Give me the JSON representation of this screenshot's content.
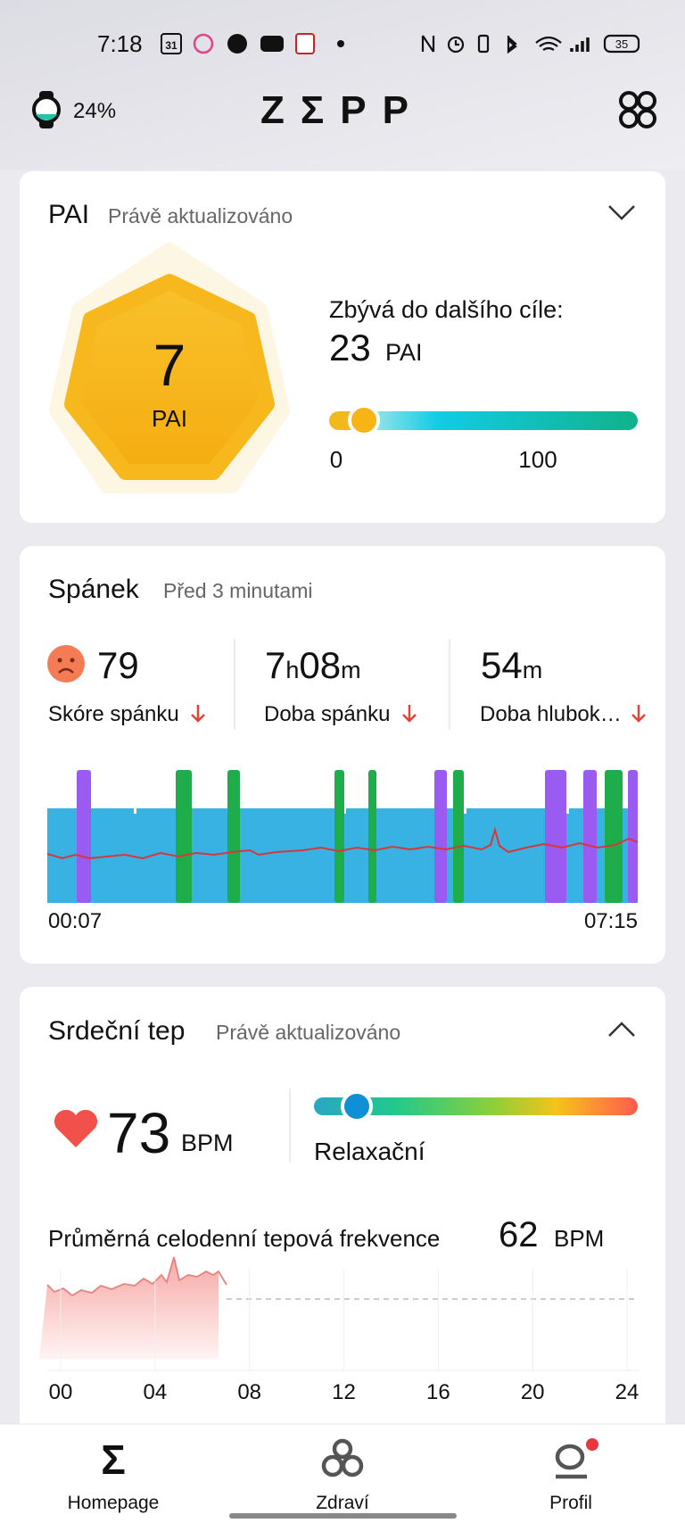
{
  "status_bar": {
    "time": "7:18",
    "calendar_day": "31",
    "battery": "35"
  },
  "header": {
    "watch_battery": "24%",
    "title": "ZΣPP"
  },
  "pai_card": {
    "title": "PAI",
    "updated": "Právě aktualizováno",
    "value": "7",
    "unit": "PAI",
    "goal_label": "Zbývá do dalšího cíle:",
    "goal_value": "23",
    "goal_unit": "PAI",
    "scale_min": "0",
    "scale_max": "100"
  },
  "sleep_card": {
    "title": "Spánek",
    "updated": "Před 3 minutami",
    "score": {
      "value": "79",
      "label": "Skóre spánku"
    },
    "duration": {
      "hours": "7",
      "hours_unit": "h",
      "minutes": "08",
      "minutes_unit": "m",
      "label": "Doba spánku"
    },
    "deep": {
      "value": "54",
      "unit": "m",
      "label": "Doba hlubok…"
    },
    "start": "00:07",
    "end": "07:15"
  },
  "heart_card": {
    "title": "Srdeční tep",
    "updated": "Právě aktualizováno",
    "value": "73",
    "unit": "BPM",
    "zone": "Relaxační",
    "avg_label": "Průměrná celodenní tepová frekvence",
    "avg_value": "62",
    "avg_unit": "BPM",
    "hours": [
      "00",
      "04",
      "08",
      "12",
      "16",
      "20",
      "24"
    ]
  },
  "nav": [
    "Homepage",
    "Zdraví",
    "Profil"
  ]
}
